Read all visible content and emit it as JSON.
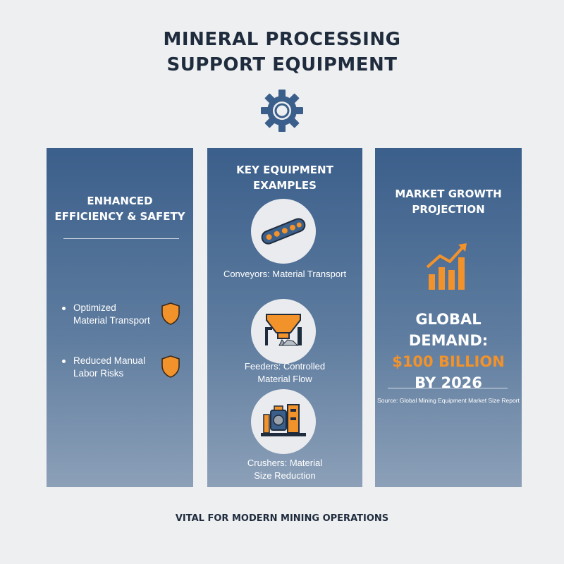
{
  "title": {
    "line1": "MINERAL PROCESSING",
    "line2": "SUPPORT EQUIPMENT"
  },
  "header_icon": "gear-icon",
  "colors": {
    "navy": "#1f2c3d",
    "accent_blue": "#3b5f8b",
    "accent_orange": "#f2922b",
    "background": "#eeeff1"
  },
  "panels": {
    "efficiency": {
      "title_line1": "ENHANCED",
      "title_line2": "EFFICIENCY & SAFETY",
      "bullets": [
        {
          "line1": "Optimized",
          "line2": "Material Transport",
          "icon": "shield-icon"
        },
        {
          "line1": "Reduced Manual",
          "line2": "Labor Risks",
          "icon": "shield-icon"
        }
      ]
    },
    "equipment": {
      "title_line1": "KEY EQUIPMENT",
      "title_line2": "EXAMPLES",
      "items": [
        {
          "icon": "conveyor-icon",
          "line1": "Conveyors: Material Transport",
          "line2": ""
        },
        {
          "icon": "feeder-hopper-icon",
          "line1": "Feeders: Controlled",
          "line2": "Material Flow"
        },
        {
          "icon": "crusher-machine-icon",
          "line1": "Crushers: Material",
          "line2": "Size Reduction"
        }
      ]
    },
    "market": {
      "title_line1": "Market Growth",
      "title_line2": "Projection",
      "icon": "trend-chart-icon",
      "demand_line1": "GLOBAL DEMAND:",
      "demand_amount": "$100 BILLION",
      "demand_line3": "BY 2026",
      "source": "Source: Global Mining Equipment Market Size Report"
    }
  },
  "footer": "VITAL FOR MODERN MINING OPERATIONS"
}
